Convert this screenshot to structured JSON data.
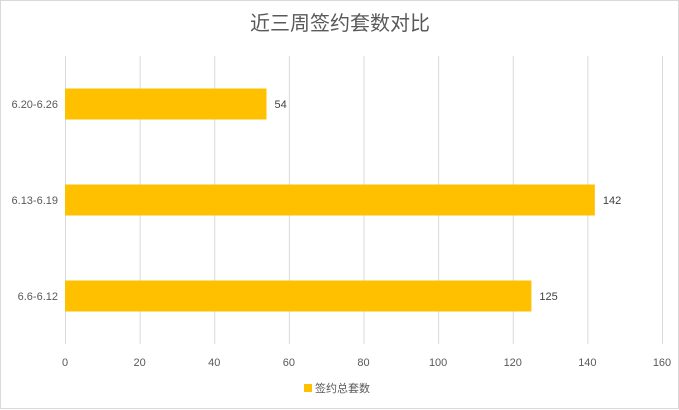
{
  "chart_data": {
    "type": "bar",
    "orientation": "horizontal",
    "title": "近三周签约套数对比",
    "categories": [
      "6.20-6.26",
      "6.13-6.19",
      "6.6-6.12"
    ],
    "series": [
      {
        "name": "签约总套数",
        "values": [
          54,
          142,
          125
        ],
        "color": "#FFC000"
      }
    ],
    "xlim": [
      0,
      160
    ],
    "xticks": [
      0,
      20,
      40,
      60,
      80,
      100,
      120,
      140,
      160
    ],
    "grid": "vertical",
    "legend_position": "bottom",
    "data_labels": true
  }
}
